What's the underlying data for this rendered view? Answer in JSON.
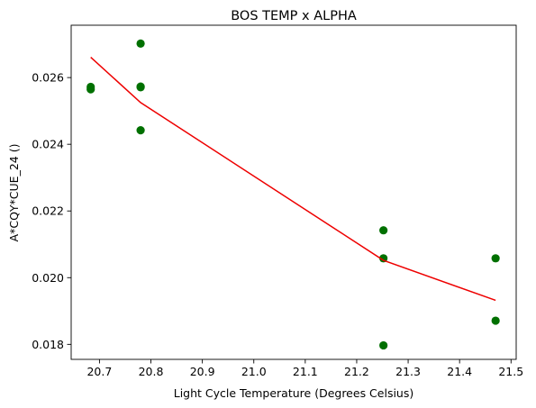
{
  "chart_data": {
    "type": "scatter",
    "title": "BOS TEMP x ALPHA",
    "xlabel": "Light Cycle Temperature (Degrees Celsius)",
    "ylabel": "A*CQY*CUE_24 ()",
    "xlim": [
      20.645,
      21.51
    ],
    "ylim": [
      0.01755,
      0.02757
    ],
    "xticks": [
      20.7,
      20.8,
      20.9,
      21.0,
      21.1,
      21.2,
      21.3,
      21.4,
      21.5
    ],
    "xtick_labels": [
      "20.7",
      "20.8",
      "20.9",
      "21.0",
      "21.1",
      "21.2",
      "21.3",
      "21.4",
      "21.5"
    ],
    "yticks": [
      0.018,
      0.02,
      0.022,
      0.024,
      0.026
    ],
    "ytick_labels": [
      "0.018",
      "0.020",
      "0.022",
      "0.024",
      "0.026"
    ],
    "grid": false,
    "series": [
      {
        "kind": "points",
        "color": "#007000",
        "x": [
          20.683,
          20.683,
          20.78,
          20.78,
          20.78,
          20.78,
          21.252,
          21.252,
          21.252,
          21.47,
          21.47
        ],
        "y": [
          0.02572,
          0.02565,
          0.02702,
          0.02573,
          0.02571,
          0.02442,
          0.02142,
          0.02058,
          0.01797,
          0.02058,
          0.01871
        ]
      },
      {
        "kind": "line",
        "color": "#ee0000",
        "x": [
          20.683,
          20.78,
          21.252,
          21.47
        ],
        "y": [
          0.02661,
          0.02525,
          0.02052,
          0.01932
        ]
      }
    ]
  }
}
